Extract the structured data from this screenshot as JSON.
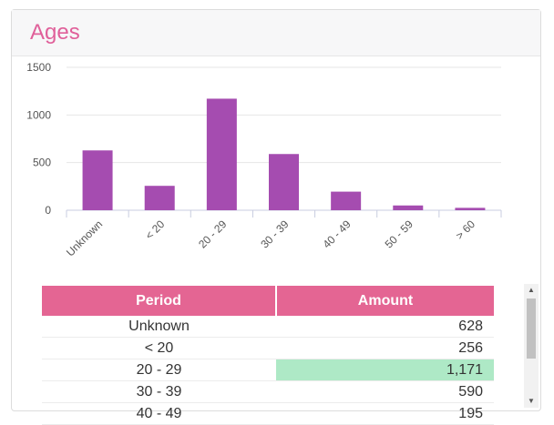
{
  "widget": {
    "title": "Ages"
  },
  "chart_data": {
    "type": "bar",
    "categories": [
      "Unknown",
      "< 20",
      "20 - 29",
      "30 - 39",
      "40 - 49",
      "50 - 59",
      "> 60"
    ],
    "values": [
      628,
      256,
      1171,
      590,
      195,
      50,
      25
    ],
    "ylim": [
      0,
      1500
    ],
    "yticks": [
      "0",
      "500",
      "1000",
      "1500"
    ],
    "bar_color": "#a54cb0",
    "grid": true,
    "legend": "none"
  },
  "table": {
    "headers": {
      "period": "Period",
      "amount": "Amount"
    },
    "header_color": "#e46593",
    "highlight_color": "#aee9c6",
    "rows": [
      {
        "period": "Unknown",
        "amount": "628"
      },
      {
        "period": "< 20",
        "amount": "256"
      },
      {
        "period": "20 - 29",
        "amount": "1,171",
        "highlight": true
      },
      {
        "period": "30 - 39",
        "amount": "590"
      },
      {
        "period": "40 - 49",
        "amount": "195"
      }
    ]
  },
  "scrollbar": {
    "up_icon": "triangle-up-icon",
    "down_icon": "triangle-down-icon"
  }
}
